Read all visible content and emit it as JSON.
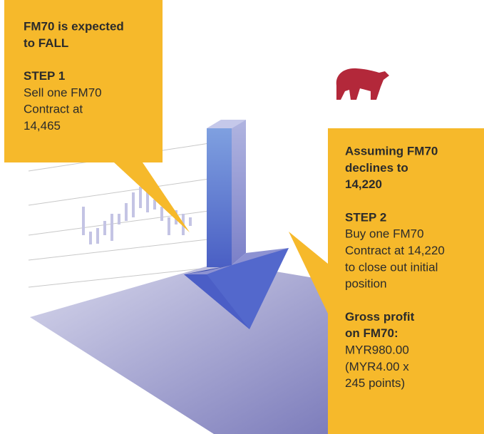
{
  "left_callout": {
    "heading": [
      "FM70 is expected",
      "to FALL"
    ],
    "step": "STEP 1",
    "text": [
      "Sell one FM70",
      "Contract at",
      "14,465"
    ]
  },
  "right_callout": {
    "heading": [
      "Assuming FM70",
      "declines to",
      "14,220"
    ],
    "step": "STEP 2",
    "text": [
      "Buy one FM70",
      "Contract at 14,220",
      "to close out initial",
      "position"
    ],
    "profit_heading": [
      "Gross profit",
      "on FM70:"
    ],
    "profit_text": [
      "MYR980.00",
      "(MYR4.00 x",
      "245 points)"
    ]
  }
}
